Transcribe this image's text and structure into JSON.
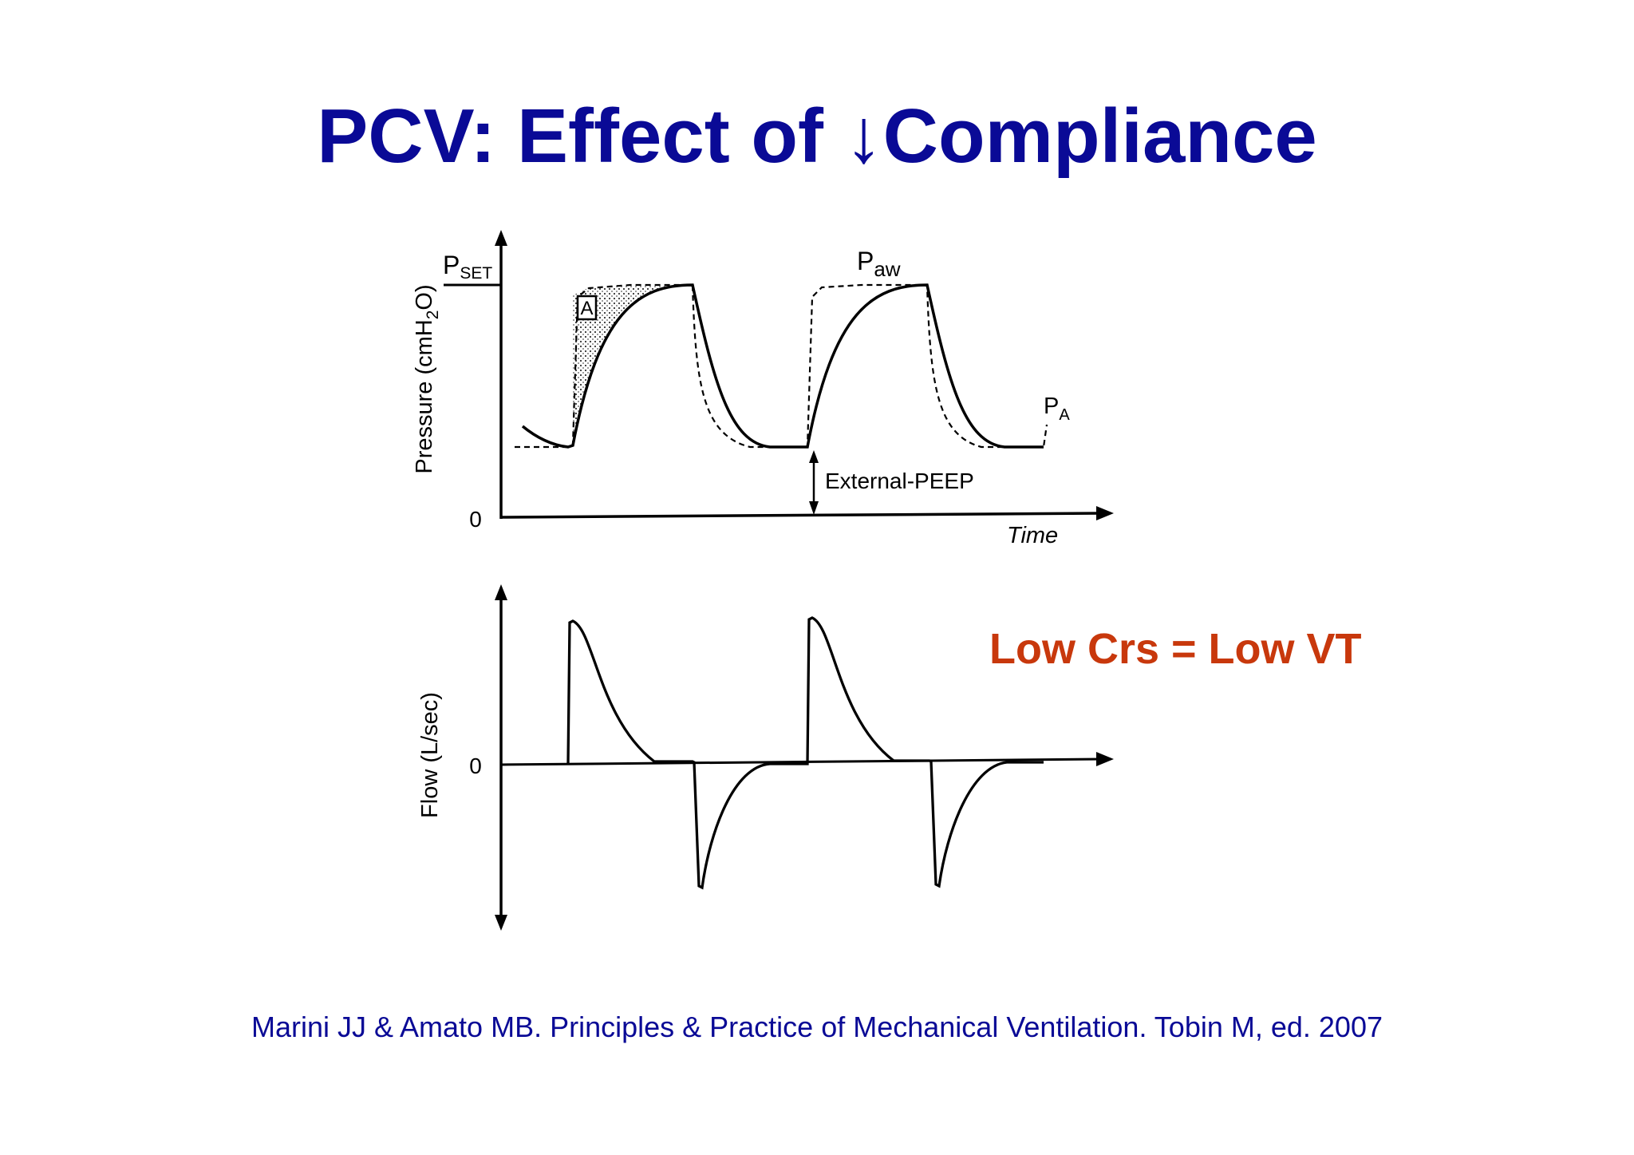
{
  "title": "PCV: Effect of ↓Compliance",
  "highlight": "Low Crs = Low VT",
  "citation": "Marini JJ & Amato MB. Principles & Practice of Mechanical Ventilation. Tobin M, ed. 2007",
  "pressure_panel": {
    "y_axis_label": {
      "main": "Pressure (cmH",
      "sub": "2",
      "tail": "O)"
    },
    "x_axis_label": "Time",
    "zero_label": "0",
    "pset_label": {
      "main": "P",
      "sub": "SET"
    },
    "paw_label": {
      "main": "P",
      "sub": "aw"
    },
    "pa_label": {
      "main": "P",
      "sub": "A"
    },
    "area_label": "A",
    "peep_label": "External-PEEP"
  },
  "flow_panel": {
    "y_axis_label": "Flow (L/sec)",
    "zero_label": "0"
  },
  "colors": {
    "title": "#0a0a96",
    "highlight": "#c8380c",
    "citation": "#0a0a96",
    "lines": "#000000"
  }
}
